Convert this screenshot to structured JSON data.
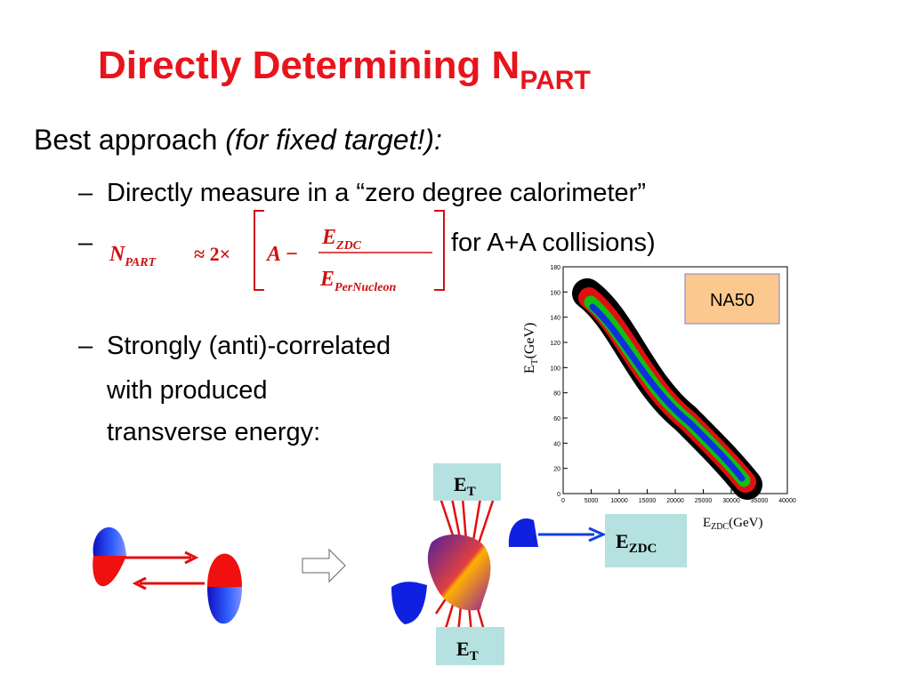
{
  "title": {
    "main": "Directly Determining N",
    "sub": "PART"
  },
  "bullet": {
    "text": "Best approach ",
    "emphasis": "(for fixed target!):"
  },
  "sub_bullets": [
    {
      "dash": "–",
      "text": "Directly measure in a “zero degree calorimeter”"
    },
    {
      "dash": "–",
      "text": "for A+A collisions)"
    },
    {
      "dash": "–",
      "lines": [
        "Strongly (anti)-correlated",
        "with produced",
        "transverse energy:"
      ]
    }
  ],
  "formula": {
    "n": "N",
    "n_sub": "PART",
    "approx": "≈ 2×",
    "a": "A −",
    "num": "E",
    "num_sub": "ZDC",
    "den": "E",
    "den_sub": "PerNucleon"
  },
  "plot": {
    "legend": "NA50",
    "y_label": "E",
    "y_label_sub": "T",
    "y_label_unit": "(GeV)",
    "x_label": "E",
    "x_label_sub": "ZDC",
    "x_label_unit": "(GeV)",
    "yticks": [
      0,
      20,
      40,
      60,
      80,
      100,
      120,
      140,
      160,
      180
    ],
    "xticks": [
      0,
      5000,
      10000,
      15000,
      20000,
      25000,
      30000,
      35000,
      40000
    ]
  },
  "diagram": {
    "et_top": "E",
    "et_top_sub": "T",
    "ezdc": "E",
    "ezdc_sub": "ZDC",
    "et_bottom": "E",
    "et_bottom_sub": "T"
  }
}
